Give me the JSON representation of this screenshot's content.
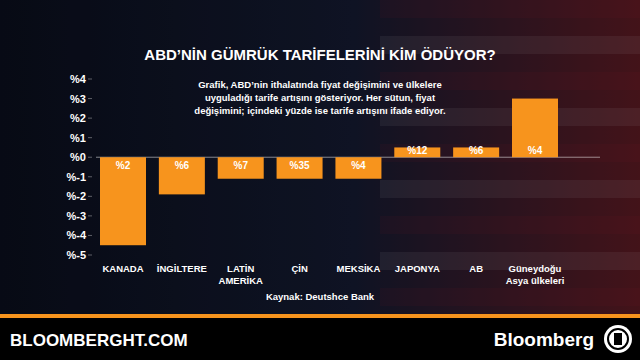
{
  "chart_data": {
    "type": "bar",
    "title": "ABD’NİN GÜMRÜK TARİFELERİNİ KİM ÖDÜYOR?",
    "subtitle": [
      "Grafik, ABD’nin ithalatında fiyat değişimini ve ülkelere",
      "uyguladığı tarife artışını gösteriyor. Her sütun, fiyat",
      "değişimini; içindeki yüzde ise tarife artışını ifade ediyor."
    ],
    "categories": [
      "KANADA",
      "İNGİLTERE",
      "LATİN\nAMERİKA",
      "ÇİN",
      "MEKSİKA",
      "JAPONYA",
      "AB",
      "Güneydoğu\nAsya ülkeleri"
    ],
    "values": [
      -4.5,
      -1.9,
      -1.1,
      -1.1,
      -1.1,
      0.5,
      0.5,
      3.0
    ],
    "tariff_increase": [
      2,
      6,
      7,
      35,
      4,
      12,
      6,
      4
    ],
    "tariff_increase_labels": [
      "%2",
      "%6",
      "%7",
      "%35",
      "%4",
      "%12",
      "%6",
      "%4"
    ],
    "color": "#f7941d",
    "ylim": [
      -5,
      4
    ],
    "yticks": [
      {
        "value": 4,
        "label": "%4"
      },
      {
        "value": 3,
        "label": "%3"
      },
      {
        "value": 2,
        "label": "%2"
      },
      {
        "value": 1,
        "label": "%1"
      },
      {
        "value": 0,
        "label": "%0"
      },
      {
        "value": -1,
        "label": "%-1"
      },
      {
        "value": -2,
        "label": "%-2"
      },
      {
        "value": -3,
        "label": "%-3"
      },
      {
        "value": -4,
        "label": "%-4"
      },
      {
        "value": -5,
        "label": "%-5"
      }
    ],
    "grid": false,
    "source": "Kaynak: Deutshce Bank",
    "footer": [
      "BLOOMBERGHT.COM",
      "Bloomberg"
    ]
  }
}
